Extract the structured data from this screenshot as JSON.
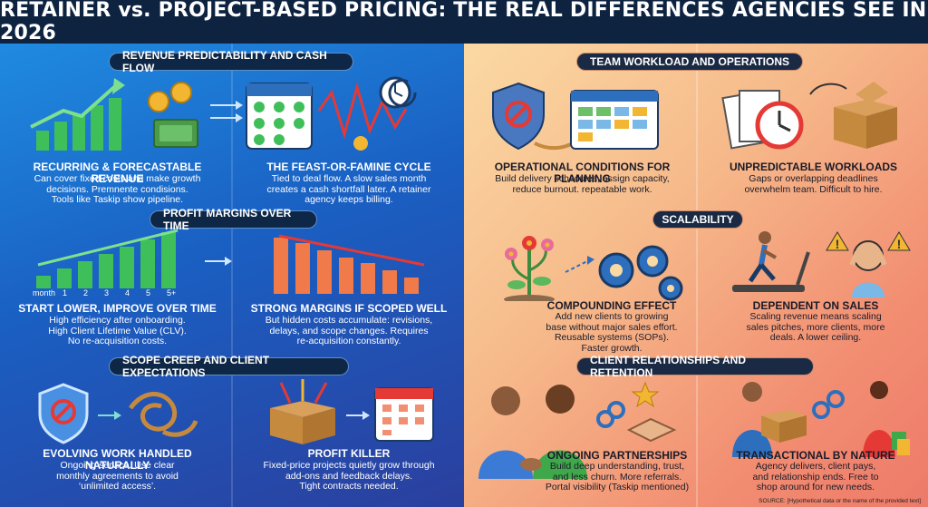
{
  "title": "RETAINER vs. PROJECT-BASED PRICING: THE REAL DIFFERENCES AGENCIES SEE IN 2026",
  "sections": {
    "revenue": "REVENUE PREDICTABILITY AND CASH FLOW",
    "margins": "PROFIT MARGINS OVER TIME",
    "scope": "SCOPE CREEP AND CLIENT EXPECTATIONS",
    "workload": "TEAM WORKLOAD AND OPERATIONS",
    "scalability": "SCALABILITY",
    "relationships": "CLIENT RELATIONSHIPS AND RETENTION"
  },
  "blocks": {
    "recurring": {
      "title": "RECURRING & FORECASTABLE REVENUE",
      "lines": [
        "Can cover fixed costs and make growth",
        "decisions. Premnente condisions.",
        "Tools like Taskip show pipeline."
      ]
    },
    "feast": {
      "title": "THE FEAST-OR-FAMINE CYCLE",
      "lines": [
        "Tied to deal flow. A slow sales month",
        "creates a cash shortfall later. A retainer",
        "agency keeps billing."
      ]
    },
    "start_lower": {
      "title": "START LOWER, IMPROVE OVER TIME",
      "lines": [
        "High efficiency after onboarding.",
        "High Client Lifetime Value (CLV).",
        "No re-acquisition costs."
      ]
    },
    "strong_margins": {
      "title": "STRONG MARGINS IF SCOPED WELL",
      "lines": [
        "But hidden costs accumulate: revisions,",
        "delays, and scope changes. Requires",
        "re-acquisition constantly."
      ]
    },
    "evolving": {
      "title": "EVOLVING WORK HANDLED NATURALLY",
      "lines": [
        "Ongoing service. Use clear",
        "monthly agreements to avoid",
        "‘unlimited access’."
      ]
    },
    "profit_killer": {
      "title": "PROFIT KILLER",
      "lines": [
        "Fixed-price projects quietly grow through",
        "add-ons and feedback delays.",
        "Tight contracts needed."
      ]
    },
    "operational": {
      "title": "OPERATIONAL CONDITIONS FOR PLANNING",
      "lines": [
        "Build delivery schedules, assign capacity,",
        "reduce burnout. repeatable work."
      ]
    },
    "unpredictable": {
      "title": "UNPREDICTABLE WORKLOADS",
      "lines": [
        "Gaps or overlapping deadlines",
        "overwhelm team. Difficult to hire."
      ]
    },
    "compounding": {
      "title": "COMPOUNDING EFFECT",
      "lines": [
        "Add new clients to growing",
        "base without major sales effort.",
        "Reusable systems (SOPs).",
        "Faster growth."
      ]
    },
    "dependent": {
      "title": "DEPENDENT ON SALES",
      "lines": [
        "Scaling revenue means scaling",
        "sales pitches, more clients, more",
        "deals. A lower ceiling."
      ]
    },
    "ongoing": {
      "title": "ONGOING PARTNERSHIPS",
      "lines": [
        "Build deep understanding, trust,",
        "and less churn. More referrals.",
        "Portal visibility (Taskip mentioned)"
      ]
    },
    "transactional": {
      "title": "TRANSACTIONAL BY NATURE",
      "lines": [
        "Agency delivers, client pays,",
        "and relationship ends. Free to",
        "shop around for new needs."
      ]
    }
  },
  "chart_labels": [
    "month",
    "1",
    "2",
    "3",
    "4",
    "5",
    "5+"
  ],
  "source": "SOURCE: [Hypothetical data or the name of the provided text]",
  "colors": {
    "title_bg": "#0d2340",
    "left_accent": "#1a5fc2",
    "right_accent": "#f28e72",
    "green": "#4caf50",
    "red": "#e53935",
    "gold": "#f2b632"
  }
}
